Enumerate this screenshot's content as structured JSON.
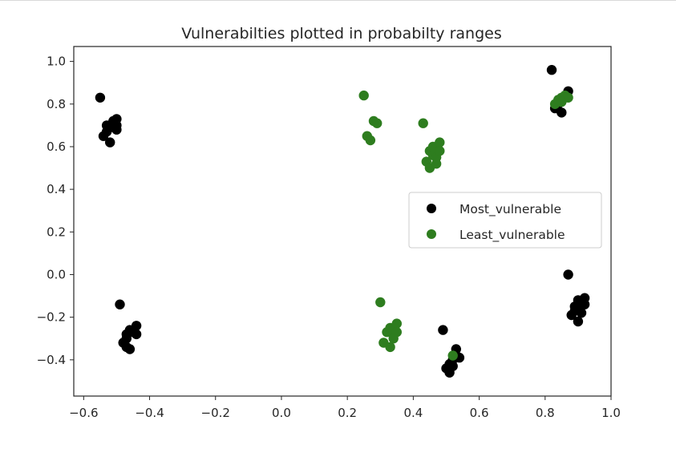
{
  "colors": {
    "most": "#000000",
    "least": "#2e7d1f",
    "axis": "#262626"
  },
  "chart_data": {
    "type": "scatter",
    "title": "Vulnerabilties plotted in probabilty ranges",
    "xlabel": "",
    "ylabel": "",
    "xlim": [
      -0.63,
      1.0
    ],
    "ylim": [
      -0.57,
      1.07
    ],
    "xticks": [
      -0.6,
      -0.4,
      -0.2,
      0.0,
      0.2,
      0.4,
      0.6,
      0.8,
      1.0
    ],
    "xtick_labels": [
      "−0.6",
      "−0.4",
      "−0.2",
      "0.0",
      "0.2",
      "0.4",
      "0.6",
      "0.8",
      "1.0"
    ],
    "yticks": [
      1.0,
      0.8,
      0.6,
      0.4,
      0.2,
      0.0,
      -0.2,
      -0.4
    ],
    "ytick_labels": [
      "1.0",
      "0.8",
      "0.6",
      "0.4",
      "0.2",
      "0.0",
      "−0.2",
      "−0.4"
    ],
    "grid": false,
    "legend_position": "right",
    "series": [
      {
        "name": "Most_vulnerable",
        "color": "#000000",
        "points": [
          [
            -0.55,
            0.83
          ],
          [
            -0.54,
            0.65
          ],
          [
            -0.53,
            0.67
          ],
          [
            -0.53,
            0.7
          ],
          [
            -0.52,
            0.62
          ],
          [
            -0.52,
            0.69
          ],
          [
            -0.51,
            0.72
          ],
          [
            -0.5,
            0.7
          ],
          [
            -0.5,
            0.73
          ],
          [
            -0.5,
            0.68
          ],
          [
            -0.49,
            -0.14
          ],
          [
            -0.48,
            -0.32
          ],
          [
            -0.47,
            -0.34
          ],
          [
            -0.47,
            -0.28
          ],
          [
            -0.47,
            -0.3
          ],
          [
            -0.46,
            -0.35
          ],
          [
            -0.46,
            -0.26
          ],
          [
            -0.45,
            -0.27
          ],
          [
            -0.44,
            -0.24
          ],
          [
            -0.44,
            -0.28
          ],
          [
            0.49,
            -0.26
          ],
          [
            0.5,
            -0.44
          ],
          [
            0.51,
            -0.42
          ],
          [
            0.51,
            -0.46
          ],
          [
            0.52,
            -0.4
          ],
          [
            0.53,
            -0.38
          ],
          [
            0.53,
            -0.35
          ],
          [
            0.54,
            -0.39
          ],
          [
            0.52,
            -0.43
          ],
          [
            0.82,
            0.96
          ],
          [
            0.83,
            0.78
          ],
          [
            0.84,
            0.8
          ],
          [
            0.85,
            0.76
          ],
          [
            0.86,
            0.83
          ],
          [
            0.87,
            0.86
          ],
          [
            0.87,
            0.0
          ],
          [
            0.88,
            -0.19
          ],
          [
            0.89,
            -0.15
          ],
          [
            0.9,
            -0.22
          ],
          [
            0.9,
            -0.12
          ],
          [
            0.91,
            -0.18
          ],
          [
            0.91,
            -0.14
          ],
          [
            0.92,
            -0.11
          ],
          [
            0.92,
            -0.14
          ],
          [
            0.89,
            -0.17
          ]
        ]
      },
      {
        "name": "Least_vulnerable",
        "color": "#2e7d1f",
        "points": [
          [
            0.25,
            0.84
          ],
          [
            0.26,
            0.65
          ],
          [
            0.27,
            0.63
          ],
          [
            0.28,
            0.72
          ],
          [
            0.29,
            0.71
          ],
          [
            0.43,
            0.71
          ],
          [
            0.44,
            0.53
          ],
          [
            0.45,
            0.58
          ],
          [
            0.45,
            0.5
          ],
          [
            0.46,
            0.56
          ],
          [
            0.46,
            0.6
          ],
          [
            0.47,
            0.55
          ],
          [
            0.48,
            0.62
          ],
          [
            0.48,
            0.58
          ],
          [
            0.47,
            0.52
          ],
          [
            0.3,
            -0.13
          ],
          [
            0.31,
            -0.32
          ],
          [
            0.32,
            -0.27
          ],
          [
            0.33,
            -0.34
          ],
          [
            0.33,
            -0.25
          ],
          [
            0.34,
            -0.26
          ],
          [
            0.35,
            -0.23
          ],
          [
            0.35,
            -0.27
          ],
          [
            0.34,
            -0.3
          ],
          [
            0.52,
            -0.38
          ],
          [
            0.83,
            0.8
          ],
          [
            0.84,
            0.82
          ],
          [
            0.85,
            0.83
          ],
          [
            0.86,
            0.84
          ],
          [
            0.87,
            0.83
          ],
          [
            0.85,
            0.81
          ]
        ]
      }
    ]
  }
}
